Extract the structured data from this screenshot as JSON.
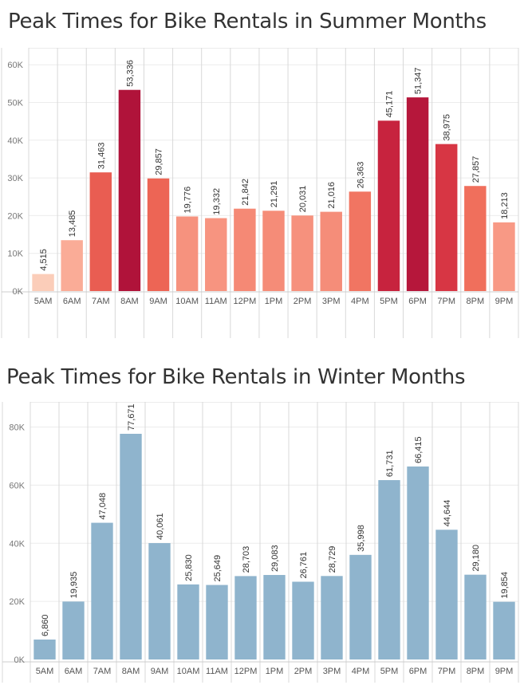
{
  "chart_data": [
    {
      "type": "bar",
      "title": "Peak Times for Bike Rentals in Summer Months",
      "categories": [
        "5AM",
        "6AM",
        "7AM",
        "8AM",
        "9AM",
        "10AM",
        "11AM",
        "12PM",
        "1PM",
        "2PM",
        "3PM",
        "4PM",
        "5PM",
        "6PM",
        "7PM",
        "8PM",
        "9PM"
      ],
      "values": [
        4515,
        13485,
        31463,
        53336,
        29857,
        19776,
        19332,
        21842,
        21291,
        20031,
        21016,
        26363,
        45171,
        51347,
        38975,
        27857,
        18213
      ],
      "value_labels": [
        "4,515",
        "13,485",
        "31,463",
        "53,336",
        "29,857",
        "19,776",
        "19,332",
        "21,842",
        "21,291",
        "20,031",
        "21,016",
        "26,363",
        "45,171",
        "51,347",
        "38,975",
        "27,857",
        "18,213"
      ],
      "yticks": [
        0,
        10000,
        20000,
        30000,
        40000,
        50000,
        60000
      ],
      "ytick_labels": [
        "0K",
        "10K",
        "20K",
        "30K",
        "40K",
        "50K",
        "60K"
      ],
      "ylim": [
        0,
        63000
      ],
      "color_scale": [
        "#fbcdb9",
        "#f9a08b",
        "#ef6a57",
        "#d22b40",
        "#b0133a"
      ],
      "grid": true,
      "xlabel": "",
      "ylabel": ""
    },
    {
      "type": "bar",
      "title": "Peak Times for Bike Rentals in Winter Months",
      "categories": [
        "5AM",
        "6AM",
        "7AM",
        "8AM",
        "9AM",
        "10AM",
        "11AM",
        "12PM",
        "1PM",
        "2PM",
        "3PM",
        "4PM",
        "5PM",
        "6PM",
        "7PM",
        "8PM",
        "9PM"
      ],
      "values": [
        6860,
        19935,
        47048,
        77671,
        40061,
        25830,
        25649,
        28703,
        29083,
        26761,
        28729,
        35998,
        61731,
        66415,
        44644,
        29180,
        19854
      ],
      "value_labels": [
        "6,860",
        "19,935",
        "47,048",
        "77,671",
        "40,061",
        "25,830",
        "25,649",
        "28,703",
        "29,083",
        "26,761",
        "28,729",
        "35,998",
        "61,731",
        "66,415",
        "44,644",
        "29,180",
        "19,854"
      ],
      "yticks": [
        0,
        20000,
        40000,
        60000,
        80000
      ],
      "ytick_labels": [
        "0K",
        "20K",
        "40K",
        "60K",
        "80K"
      ],
      "ylim": [
        0,
        87000
      ],
      "bar_color": "#8fb4cd",
      "grid": true,
      "xlabel": "",
      "ylabel": ""
    }
  ]
}
